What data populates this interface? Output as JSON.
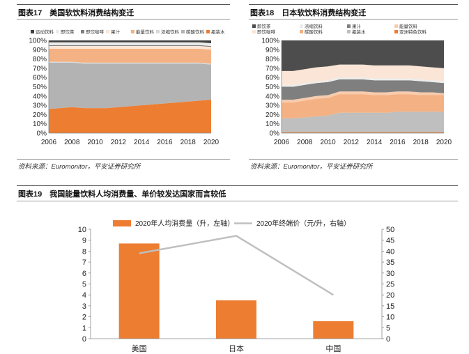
{
  "colors": {
    "orange": "#ED7D31",
    "lightOrange": "#F4B183",
    "peach": "#F8CBAD",
    "paleOrange": "#FBE5D6",
    "gray": "#B3B3B3",
    "darkGray": "#4D4D4D",
    "midGray": "#7F7F7F",
    "lineGray": "#BFBFBF"
  },
  "fig17": {
    "title": "图表17　美国软饮料消费结构变迁",
    "source": "资料来源：Euromonitor，平安证券研究所"
  },
  "fig18": {
    "title": "图表18　日本软饮料消费结构变迁",
    "source": "资料来源：Euromonitor，平安证券研究所"
  },
  "fig19": {
    "title": "图表19　我国能量饮料人均消费量、单价较发达国家而言较低"
  },
  "chart_data": [
    {
      "type": "area",
      "stacked": true,
      "x": [
        2006,
        2007,
        2008,
        2009,
        2010,
        2011,
        2012,
        2013,
        2014,
        2015,
        2016,
        2017,
        2018,
        2019,
        2020
      ],
      "xticks": [
        2006,
        2008,
        2010,
        2012,
        2014,
        2016,
        2018,
        2020
      ],
      "ylim": [
        0,
        100
      ],
      "yticks": [
        0,
        10,
        20,
        30,
        40,
        50,
        60,
        70,
        80,
        90,
        100
      ],
      "yunit": "%",
      "legend_position": "top",
      "series": [
        {
          "name": "瓶装水",
          "color": "#ED7D31",
          "values": [
            26,
            27,
            28,
            27,
            27,
            27,
            28,
            29,
            30,
            31,
            32,
            33,
            34,
            35,
            36
          ]
        },
        {
          "name": "碳酸饮料",
          "color": "#B3B3B3",
          "values": [
            50,
            49,
            48,
            48,
            48,
            48,
            47,
            46,
            45,
            44,
            43,
            42,
            41,
            40,
            38
          ]
        },
        {
          "name": "浓缩饮料",
          "color": "#D9D9D9",
          "values": [
            1,
            1,
            1,
            1,
            1,
            1,
            1,
            1,
            1,
            1,
            1,
            1,
            1,
            1,
            1
          ]
        },
        {
          "name": "能量饮料",
          "color": "#F4B183",
          "values": [
            14,
            14,
            14,
            15,
            15,
            15,
            15,
            15,
            15,
            15,
            15,
            15,
            15,
            15,
            15
          ]
        },
        {
          "name": "果汁",
          "color": "#FBE5D6",
          "values": [
            3,
            3,
            3,
            3,
            3,
            3,
            3,
            3,
            3,
            3,
            3,
            3,
            3,
            3,
            3
          ]
        },
        {
          "name": "即饮咖啡",
          "color": "#7F7F7F",
          "values": [
            1,
            1,
            1,
            1,
            1,
            1,
            1,
            1,
            1,
            1,
            1,
            1,
            1,
            1,
            1
          ]
        },
        {
          "name": "即饮茶",
          "color": "#ECECEC",
          "values": [
            3,
            3,
            3,
            3,
            3,
            3,
            3,
            3,
            3,
            3,
            3,
            3,
            3,
            3,
            3
          ]
        },
        {
          "name": "运动饮料",
          "color": "#404040",
          "values": [
            2,
            2,
            2,
            2,
            2,
            2,
            2,
            2,
            2,
            2,
            2,
            2,
            2,
            2,
            3
          ]
        }
      ]
    },
    {
      "type": "area",
      "stacked": true,
      "x": [
        2006,
        2007,
        2008,
        2009,
        2010,
        2011,
        2012,
        2013,
        2014,
        2015,
        2016,
        2017,
        2018,
        2019,
        2020
      ],
      "xticks": [
        2006,
        2008,
        2010,
        2012,
        2014,
        2016,
        2018,
        2020
      ],
      "ylim": [
        0,
        100
      ],
      "yticks": [
        0,
        10,
        20,
        30,
        40,
        50,
        60,
        70,
        80,
        90,
        100
      ],
      "yunit": "%",
      "legend_position": "top",
      "series": [
        {
          "name": "亚洲特色饮料",
          "color": "#ED7D31",
          "values": [
            1,
            1,
            1,
            1,
            1,
            1,
            1,
            1,
            1,
            1,
            1,
            1,
            1,
            1,
            1
          ]
        },
        {
          "name": "瓶装水",
          "color": "#BFBFBF",
          "values": [
            15,
            15,
            16,
            17,
            18,
            21,
            21,
            21,
            21,
            21,
            22,
            22,
            22,
            22,
            22
          ]
        },
        {
          "name": "碳酸饮料",
          "color": "#F4B183",
          "values": [
            17,
            17,
            18,
            19,
            19,
            20,
            20,
            20,
            19,
            19,
            19,
            19,
            18,
            18,
            18
          ]
        },
        {
          "name": "能量饮料",
          "color": "#F8CBAD",
          "values": [
            3,
            3,
            3,
            3,
            3,
            3,
            3,
            3,
            3,
            3,
            3,
            3,
            3,
            3,
            2
          ]
        },
        {
          "name": "果汁",
          "color": "#7F7F7F",
          "values": [
            14,
            14,
            14,
            14,
            14,
            13,
            13,
            13,
            13,
            13,
            12,
            12,
            12,
            11,
            11
          ]
        },
        {
          "name": "浓缩饮料",
          "color": "#ECECEC",
          "values": [
            2,
            2,
            2,
            2,
            2,
            2,
            2,
            2,
            2,
            2,
            2,
            2,
            2,
            2,
            2
          ]
        },
        {
          "name": "即饮咖啡",
          "color": "#FBE5D6",
          "values": [
            15,
            15,
            15,
            15,
            15,
            14,
            14,
            14,
            14,
            14,
            14,
            14,
            14,
            14,
            14
          ]
        },
        {
          "name": "即饮茶",
          "color": "#4D4D4D",
          "values": [
            33,
            33,
            31,
            29,
            28,
            26,
            26,
            26,
            27,
            27,
            27,
            27,
            28,
            29,
            30
          ]
        }
      ]
    },
    {
      "type": "bar",
      "categories": [
        "美国",
        "日本",
        "中国"
      ],
      "series": [
        {
          "name": "2020年人均消费量（升，左轴）",
          "type": "bar",
          "axis": "left",
          "color": "#ED7D31",
          "values": [
            8.7,
            3.5,
            1.6
          ]
        },
        {
          "name": "2020年终端价（元/升，右轴）",
          "type": "line",
          "axis": "right",
          "color": "#BFBFBF",
          "values": [
            39,
            47,
            20
          ]
        }
      ],
      "ylim": [
        0,
        10
      ],
      "yticks": [
        0,
        1,
        2,
        3,
        4,
        5,
        6,
        7,
        8,
        9,
        10
      ],
      "y2lim": [
        0,
        50
      ],
      "y2ticks": [
        0,
        5,
        10,
        15,
        20,
        25,
        30,
        35,
        40,
        45,
        50
      ],
      "legend_position": "top"
    }
  ]
}
